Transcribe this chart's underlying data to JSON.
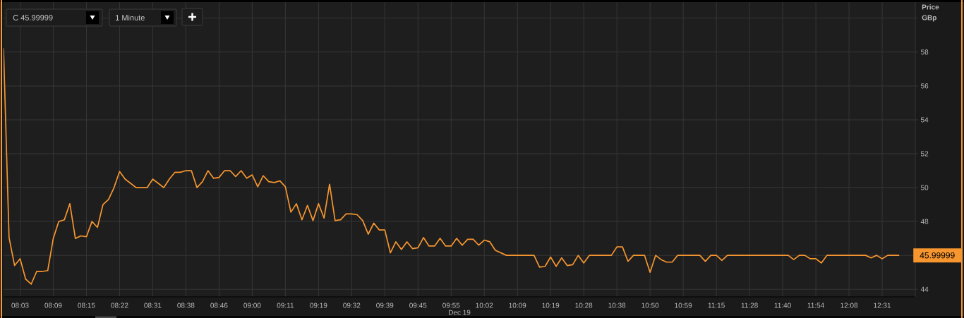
{
  "chart_data": {
    "type": "line",
    "xlabel": "Dec 19",
    "ylabel": "Price GBp",
    "categories": [
      null,
      null,
      null,
      "08:03",
      null,
      null,
      null,
      null,
      null,
      "08:09",
      null,
      null,
      null,
      null,
      null,
      "08:15",
      null,
      null,
      null,
      null,
      null,
      "08:22",
      null,
      null,
      null,
      null,
      null,
      "08:31",
      null,
      null,
      null,
      null,
      null,
      "08:38",
      null,
      null,
      null,
      null,
      null,
      "08:46",
      null,
      null,
      null,
      null,
      null,
      "09:00",
      null,
      null,
      null,
      null,
      null,
      "09:11",
      null,
      null,
      null,
      null,
      null,
      "09:19",
      null,
      null,
      null,
      null,
      null,
      "09:32",
      null,
      null,
      null,
      null,
      null,
      "09:39",
      null,
      null,
      null,
      null,
      null,
      "09:45",
      null,
      null,
      null,
      null,
      null,
      "09:55",
      null,
      null,
      null,
      null,
      null,
      "10:02",
      null,
      null,
      null,
      null,
      null,
      "10:09",
      null,
      null,
      null,
      null,
      null,
      "10:19",
      null,
      null,
      null,
      null,
      null,
      "10:28",
      null,
      null,
      null,
      null,
      null,
      "10:38",
      null,
      null,
      null,
      null,
      null,
      "10:50",
      null,
      null,
      null,
      null,
      null,
      "10:59",
      null,
      null,
      null,
      null,
      null,
      "11:15",
      null,
      null,
      null,
      null,
      null,
      "11:28",
      null,
      null,
      null,
      null,
      null,
      "11:40",
      null,
      null,
      null,
      null,
      null,
      "11:54",
      null,
      null,
      null,
      null,
      null,
      "12:08",
      null,
      null,
      null,
      null,
      null,
      "12:31",
      null,
      null,
      null
    ],
    "values": [
      58.2,
      47.05,
      45.4,
      45.8,
      44.6,
      44.3,
      45.05,
      45.05,
      45.1,
      47.0,
      48.0,
      48.1,
      49.05,
      47.0,
      47.15,
      47.1,
      48.0,
      47.65,
      49.0,
      49.3,
      50.0,
      50.95,
      50.5,
      50.25,
      50.0,
      50.0,
      50.0,
      50.5,
      50.25,
      50.0,
      50.5,
      50.9,
      50.9,
      51.0,
      51.0,
      50.0,
      50.35,
      51.0,
      50.55,
      50.6,
      51.0,
      51.0,
      50.65,
      51.0,
      50.55,
      50.75,
      50.05,
      50.7,
      50.35,
      50.3,
      50.4,
      50.05,
      48.55,
      49.05,
      48.1,
      48.95,
      48.05,
      49.05,
      48.2,
      50.2,
      48.05,
      48.1,
      48.45,
      48.45,
      48.4,
      48.05,
      47.25,
      47.9,
      47.5,
      47.5,
      46.15,
      46.8,
      46.35,
      46.8,
      46.4,
      46.45,
      47.05,
      46.55,
      46.55,
      47.0,
      46.55,
      46.55,
      47.0,
      46.6,
      46.95,
      46.95,
      46.6,
      46.9,
      46.8,
      46.3,
      46.15,
      46.0,
      46.0,
      46.0,
      46.0,
      46.0,
      46.0,
      45.3,
      45.35,
      45.9,
      45.35,
      45.85,
      45.4,
      45.45,
      46.0,
      45.55,
      46.0,
      46.0,
      46.0,
      46.0,
      46.0,
      46.5,
      46.5,
      45.65,
      46.0,
      46.0,
      46.0,
      45.0,
      46.0,
      45.75,
      45.6,
      45.6,
      46.0,
      46.0,
      46.0,
      46.0,
      46.0,
      45.65,
      46.0,
      46.0,
      45.7,
      46.0,
      46.0,
      46.0,
      46.0,
      46.0,
      46.0,
      46.0,
      46.0,
      46.0,
      46.0,
      46.0,
      46.0,
      45.75,
      46.0,
      46.0,
      45.8,
      45.8,
      45.55,
      46.0,
      46.0,
      46.0,
      46.0,
      46.0,
      46.0,
      46.0,
      46.0,
      45.85,
      46.0,
      45.8,
      46.0,
      46.0,
      46.0
    ],
    "color": "#f7962f",
    "ylim": [
      43.55,
      60.95
    ],
    "yticks": [
      44,
      {
        "value": 46,
        "label": null
      },
      48,
      50,
      52,
      54,
      56,
      58,
      {
        "value": 60,
        "label": null
      }
    ],
    "grid": true,
    "line_style": "solid",
    "annotations": [
      "C 45.99999",
      "1 Minute",
      "45.99999"
    ]
  }
}
